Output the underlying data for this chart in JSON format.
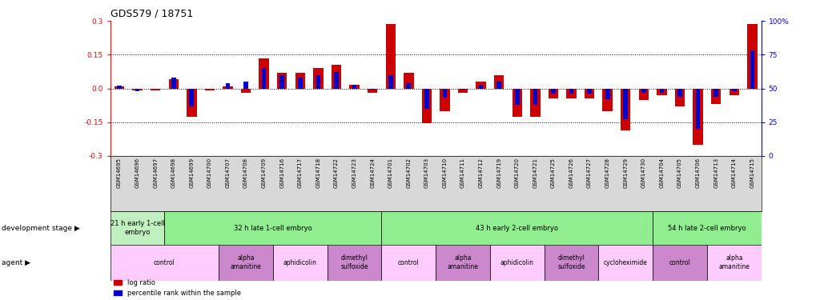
{
  "title": "GDS579 / 18751",
  "samples": [
    "GSM14695",
    "GSM14696",
    "GSM14697",
    "GSM14698",
    "GSM14699",
    "GSM14700",
    "GSM14707",
    "GSM14708",
    "GSM14709",
    "GSM14716",
    "GSM14717",
    "GSM14718",
    "GSM14722",
    "GSM14723",
    "GSM14724",
    "GSM14701",
    "GSM14702",
    "GSM14703",
    "GSM14710",
    "GSM14711",
    "GSM14712",
    "GSM14719",
    "GSM14720",
    "GSM14721",
    "GSM14725",
    "GSM14726",
    "GSM14727",
    "GSM14728",
    "GSM14729",
    "GSM14730",
    "GSM14704",
    "GSM14705",
    "GSM14706",
    "GSM14713",
    "GSM14714",
    "GSM14715"
  ],
  "log_ratio": [
    0.01,
    -0.01,
    -0.01,
    0.04,
    -0.125,
    -0.01,
    0.01,
    -0.02,
    0.135,
    0.07,
    0.07,
    0.09,
    0.105,
    0.015,
    -0.02,
    0.285,
    0.07,
    -0.155,
    -0.1,
    -0.02,
    0.03,
    0.06,
    -0.125,
    -0.125,
    -0.045,
    -0.045,
    -0.045,
    -0.1,
    -0.185,
    -0.05,
    -0.03,
    -0.08,
    -0.25,
    -0.07,
    -0.03,
    0.285
  ],
  "percentile": [
    52,
    48,
    50,
    58,
    37,
    50,
    54,
    55,
    65,
    60,
    58,
    60,
    62,
    53,
    49,
    60,
    54,
    35,
    43,
    49,
    53,
    55,
    38,
    38,
    46,
    46,
    46,
    42,
    27,
    47,
    47,
    44,
    20,
    44,
    48,
    78
  ],
  "dev_stage_spans": [
    {
      "label": "21 h early 1-cell\nembryο",
      "start": 0,
      "end": 3,
      "color": "#c0f0c0"
    },
    {
      "label": "32 h late 1-cell embryo",
      "start": 3,
      "end": 15,
      "color": "#90ee90"
    },
    {
      "label": "43 h early 2-cell embryo",
      "start": 15,
      "end": 30,
      "color": "#90ee90"
    },
    {
      "label": "54 h late 2-cell embryo",
      "start": 30,
      "end": 36,
      "color": "#90ee90"
    }
  ],
  "agent_spans": [
    {
      "label": "control",
      "start": 0,
      "end": 6,
      "color": "#ffccff"
    },
    {
      "label": "alpha\namanitine",
      "start": 6,
      "end": 9,
      "color": "#cc88cc"
    },
    {
      "label": "aphidicolin",
      "start": 9,
      "end": 12,
      "color": "#ffccff"
    },
    {
      "label": "dimethyl\nsulfoxide",
      "start": 12,
      "end": 15,
      "color": "#cc88cc"
    },
    {
      "label": "control",
      "start": 15,
      "end": 18,
      "color": "#ffccff"
    },
    {
      "label": "alpha\namanitine",
      "start": 18,
      "end": 21,
      "color": "#cc88cc"
    },
    {
      "label": "aphidicolin",
      "start": 21,
      "end": 24,
      "color": "#ffccff"
    },
    {
      "label": "dimethyl\nsulfoxide",
      "start": 24,
      "end": 27,
      "color": "#cc88cc"
    },
    {
      "label": "cycloheximide",
      "start": 27,
      "end": 30,
      "color": "#ffccff"
    },
    {
      "label": "control",
      "start": 30,
      "end": 33,
      "color": "#cc88cc"
    },
    {
      "label": "alpha\namanitine",
      "start": 33,
      "end": 36,
      "color": "#ffccff"
    }
  ],
  "ylim": [
    -0.3,
    0.3
  ],
  "yticks_left": [
    -0.3,
    -0.15,
    0.0,
    0.15,
    0.3
  ],
  "yticks_right_labels": [
    "0",
    "25",
    "50",
    "75",
    "100%"
  ],
  "yticks_right_vals": [
    0,
    25,
    50,
    75,
    100
  ],
  "bar_color_red": "#cc0000",
  "bar_color_blue": "#0000cc",
  "background_color": "#ffffff",
  "title_fontsize": 9,
  "tick_fontsize": 6.5,
  "bar_width": 0.55,
  "blue_bar_width": 0.25
}
